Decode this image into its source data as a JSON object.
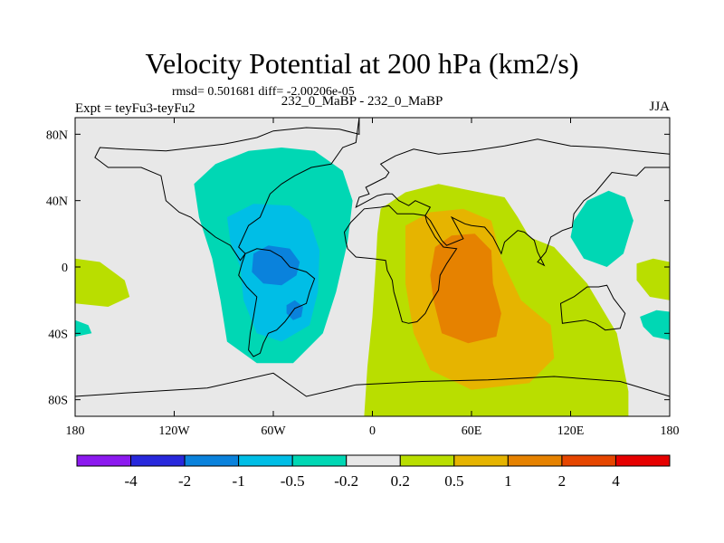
{
  "header": {
    "title": "Velocity Potential at 200 hPa (km2/s)",
    "stats": "rmsd= 0.501681 diff= -2.00206e-05",
    "runs": "232_0_MaBP - 232_0_MaBP",
    "experiment": "Expt = teyFu3-teyFu2",
    "season": "JJA"
  },
  "colors": {
    "background": "#e8e8e8",
    "coast": "#000000"
  },
  "chart_data": {
    "type": "heatmap",
    "title": "Velocity Potential at 200 hPa (km2/s)",
    "units": "km2/s",
    "xlim": [
      -180,
      180
    ],
    "ylim": [
      -90,
      90
    ],
    "x_ticks": [
      {
        "value": -180,
        "label": "180"
      },
      {
        "value": -120,
        "label": "120W"
      },
      {
        "value": -60,
        "label": "60W"
      },
      {
        "value": 0,
        "label": "0"
      },
      {
        "value": 60,
        "label": "60E"
      },
      {
        "value": 120,
        "label": "120E"
      },
      {
        "value": 180,
        "label": "180"
      }
    ],
    "y_ticks": [
      {
        "value": 80,
        "label": "80N"
      },
      {
        "value": 40,
        "label": "40N"
      },
      {
        "value": 0,
        "label": "0"
      },
      {
        "value": -40,
        "label": "40S"
      },
      {
        "value": -80,
        "label": "80S"
      }
    ],
    "colorbar": {
      "colors": [
        "#8c1aef",
        "#2828dc",
        "#0a82dc",
        "#00bee6",
        "#00d7b4",
        "#e8e8e8",
        "#b9de00",
        "#e6b400",
        "#e68200",
        "#e64600",
        "#e60000"
      ],
      "labels": [
        "-4",
        "-2",
        "-1",
        "-0.5",
        "-0.2",
        "0.2",
        "0.5",
        "1",
        "2",
        "4"
      ]
    },
    "features": [
      {
        "name": "negative-cell-main-outer",
        "sign": "negative",
        "level": "-0.5 to -0.2",
        "center_lon": -60,
        "center_lat": 5,
        "extent_lon": [
          -110,
          -10
        ],
        "extent_lat": [
          -60,
          70
        ]
      },
      {
        "name": "negative-cell-main-middle",
        "sign": "negative",
        "level": "-1 to -0.5",
        "center_lon": -62,
        "center_lat": 0,
        "extent_lon": [
          -90,
          -35
        ],
        "extent_lat": [
          -45,
          40
        ]
      },
      {
        "name": "negative-cell-main-inner",
        "sign": "negative",
        "level": "-2 to -1",
        "center_lon": -60,
        "center_lat": 0,
        "extent_lon": [
          -73,
          -45
        ],
        "extent_lat": [
          -10,
          12
        ]
      },
      {
        "name": "negative-cell-south-core",
        "sign": "negative",
        "level": "-2 to -1",
        "center_lon": -48,
        "center_lat": -26,
        "extent_lon": [
          -52,
          -43
        ],
        "extent_lat": [
          -31,
          -21
        ]
      },
      {
        "name": "negative-cell-northeast",
        "sign": "negative",
        "level": "-0.5 to -0.2",
        "center_lon": 140,
        "center_lat": 25,
        "extent_lon": [
          120,
          155
        ],
        "extent_lat": [
          0,
          45
        ]
      },
      {
        "name": "negative-cell-eastern-edge",
        "sign": "negative",
        "level": "-0.5 to -0.2",
        "center_lon": 172,
        "center_lat": -35,
        "extent_lon": [
          162,
          180
        ],
        "extent_lat": [
          -45,
          -25
        ]
      },
      {
        "name": "negative-cell-western-edge",
        "sign": "negative",
        "level": "-0.5 to -0.2",
        "center_lon": -178,
        "center_lat": -37,
        "extent_lon": [
          -180,
          -170
        ],
        "extent_lat": [
          -42,
          -32
        ]
      },
      {
        "name": "positive-cell-main-outer",
        "sign": "positive",
        "level": "0.2 to 0.5",
        "center_lon": 50,
        "center_lat": -10,
        "extent_lon": [
          -5,
          155
        ],
        "extent_lat": [
          -90,
          50
        ]
      },
      {
        "name": "positive-cell-main-middle",
        "sign": "positive",
        "level": "0.5 to 1",
        "center_lon": 55,
        "center_lat": -10,
        "extent_lon": [
          20,
          110
        ],
        "extent_lat": [
          -75,
          35
        ]
      },
      {
        "name": "positive-cell-main-inner",
        "sign": "positive",
        "level": "1 to 2",
        "center_lon": 55,
        "center_lat": -5,
        "extent_lon": [
          35,
          80
        ],
        "extent_lat": [
          -45,
          20
        ]
      },
      {
        "name": "positive-band-western-edge",
        "sign": "positive",
        "level": "0.2 to 0.5",
        "center_lon": -160,
        "center_lat": -10,
        "extent_lon": [
          -180,
          -145
        ],
        "extent_lat": [
          -25,
          5
        ]
      },
      {
        "name": "positive-band-eastern-edge",
        "sign": "positive",
        "level": "0.2 to 0.5",
        "center_lon": 170,
        "center_lat": -5,
        "extent_lon": [
          160,
          180
        ],
        "extent_lat": [
          -20,
          5
        ]
      }
    ]
  }
}
